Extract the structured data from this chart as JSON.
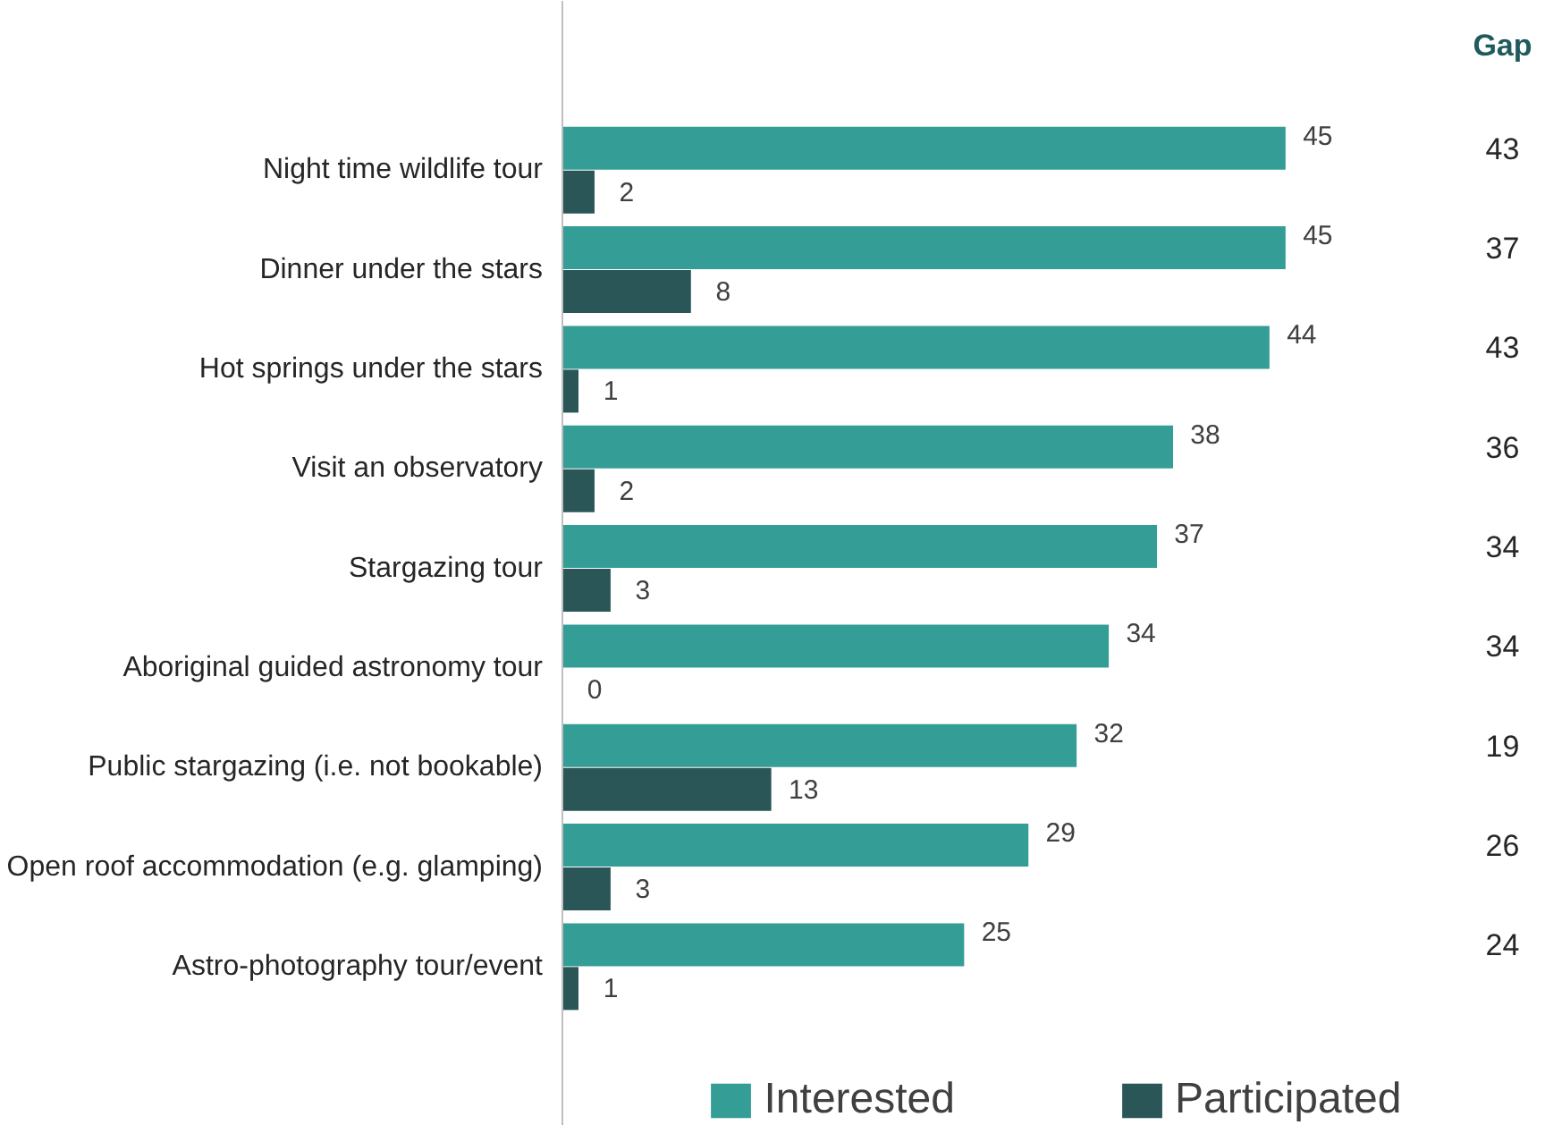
{
  "chart_data": {
    "type": "bar",
    "orientation": "horizontal",
    "data_labels": true,
    "legend": "bottom",
    "grid": false,
    "categories": [
      "Night time wildlife tour",
      "Dinner under the stars",
      "Hot springs under the stars",
      "Visit an observatory",
      "Stargazing tour",
      "Aboriginal guided astronomy tour",
      "Public stargazing (i.e. not bookable)",
      "Open roof accommodation (e.g. glamping)",
      "Astro-photography tour/event"
    ],
    "series": [
      {
        "name": "Interested",
        "color": "#349e96",
        "values": [
          45,
          45,
          44,
          38,
          37,
          34,
          32,
          29,
          25
        ]
      },
      {
        "name": "Participated",
        "color": "#2b5658",
        "values": [
          2,
          8,
          1,
          2,
          3,
          0,
          13,
          3,
          1
        ]
      }
    ],
    "annotations": [
      "Gap",
      "43",
      "37",
      "43",
      "36",
      "34",
      "34",
      "19",
      "26",
      "24"
    ]
  }
}
